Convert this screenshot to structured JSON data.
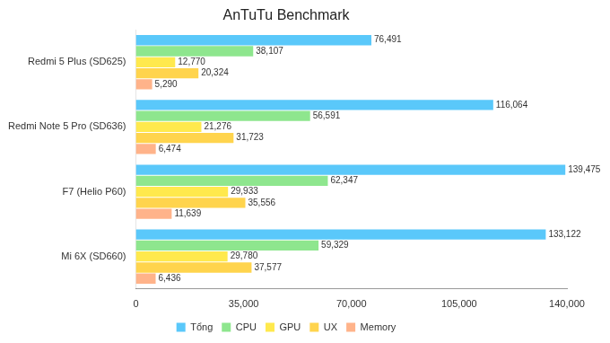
{
  "chart_data": {
    "type": "bar",
    "orientation": "horizontal",
    "title": "AnTuTu Benchmark",
    "categories": [
      "Redmi 5 Plus (SD625)",
      "Redmi Note 5 Pro (SD636)",
      "F7 (Helio P60)",
      "Mi 6X (SD660)"
    ],
    "series": [
      {
        "name": "Tổng",
        "color": "#5ac8fa",
        "values": [
          76491,
          116064,
          139475,
          133122
        ],
        "value_labels": [
          "76,491",
          "116,064",
          "139,475",
          "133,122"
        ]
      },
      {
        "name": "CPU",
        "color": "#8ee68e",
        "values": [
          38107,
          56591,
          62347,
          59329
        ],
        "value_labels": [
          "38,107",
          "56,591",
          "62,347",
          "59,329"
        ]
      },
      {
        "name": "GPU",
        "color": "#ffe94d",
        "values": [
          12770,
          21276,
          29933,
          29780
        ],
        "value_labels": [
          "12,770",
          "21,276",
          "29,933",
          "29,780"
        ]
      },
      {
        "name": "UX",
        "color": "#ffd44d",
        "values": [
          20324,
          31723,
          35556,
          37577
        ],
        "value_labels": [
          "20,324",
          "31,723",
          "35,556",
          "37,577"
        ]
      },
      {
        "name": "Memory",
        "color": "#ffb38a",
        "values": [
          5290,
          6474,
          11639,
          6436
        ],
        "value_labels": [
          "5,290",
          "6,474",
          "11,639",
          "6,436"
        ]
      }
    ],
    "xlim": [
      0,
      140000
    ],
    "xticks": [
      0,
      35000,
      70000,
      105000,
      140000
    ],
    "grid": false,
    "legend": "bottom",
    "data_labels": true
  }
}
